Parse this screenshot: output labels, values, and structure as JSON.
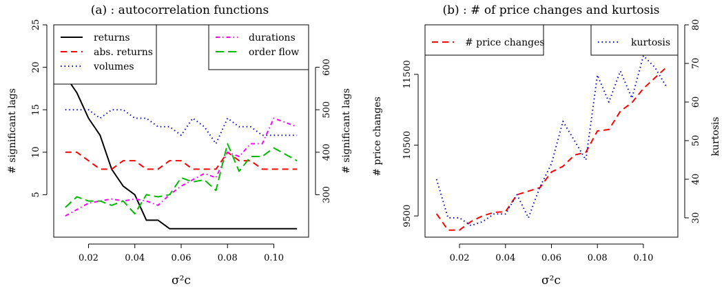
{
  "chart_data": [
    {
      "type": "line",
      "title": "(a) : autocorrelation functions",
      "xlabel": "σ²c",
      "ylabel": "# significant lags",
      "ylabel_right": "# significant lags",
      "xlim": [
        0.005,
        0.115
      ],
      "ylim": [
        0,
        25
      ],
      "ylim_right": [
        200,
        700
      ],
      "x_ticks": [
        0.02,
        0.04,
        0.06,
        0.08,
        0.1
      ],
      "x_tick_labels": [
        "0.02",
        "0.04",
        "0.06",
        "0.08",
        "0.10"
      ],
      "y_ticks": [
        5,
        10,
        15,
        20,
        25
      ],
      "y_tick_labels": [
        "5",
        "10",
        "15",
        "20",
        "25"
      ],
      "y_ticks_right": [
        300,
        400,
        500,
        600
      ],
      "y_tick_labels_right": [
        "300",
        "400",
        "500",
        "600"
      ],
      "x": [
        0.01,
        0.015,
        0.02,
        0.025,
        0.03,
        0.035,
        0.04,
        0.045,
        0.05,
        0.055,
        0.06,
        0.065,
        0.07,
        0.075,
        0.08,
        0.085,
        0.09,
        0.095,
        0.1,
        0.105,
        0.11
      ],
      "legend_left": {
        "placement": "top-left",
        "entries": [
          "returns",
          "abs. returns",
          "volumes"
        ]
      },
      "legend_right": {
        "placement": "top-right",
        "entries": [
          "durations",
          "order flow"
        ]
      },
      "series": [
        {
          "name": "returns",
          "axis": "left",
          "color": "#000000",
          "dash": "",
          "width": 2,
          "values": [
            19,
            17,
            14,
            12,
            8,
            6,
            5,
            2,
            2,
            1,
            1,
            1,
            1,
            1,
            1,
            1,
            1,
            1,
            1,
            1,
            1
          ]
        },
        {
          "name": "abs. returns",
          "axis": "left",
          "color": "#ff0000",
          "dash": "9,6",
          "width": 2,
          "values": [
            10,
            10,
            9,
            8,
            8,
            9,
            9,
            8,
            8,
            9,
            9,
            8,
            8,
            8,
            10,
            9,
            9,
            8,
            8,
            8,
            8
          ]
        },
        {
          "name": "volumes",
          "axis": "left",
          "color": "#0000cc",
          "dash": "1.5,4",
          "width": 2,
          "values": [
            15,
            15,
            15,
            14,
            15,
            15,
            14,
            14,
            13,
            13,
            12,
            14,
            13,
            11,
            14,
            13,
            13,
            12,
            12,
            12,
            12
          ]
        },
        {
          "name": "durations",
          "axis": "right",
          "color": "#ff00ff",
          "dash": "6,4,1.5,4",
          "width": 2,
          "values": [
            250,
            265,
            280,
            285,
            290,
            285,
            290,
            285,
            275,
            300,
            320,
            335,
            350,
            340,
            400,
            390,
            420,
            420,
            480,
            470,
            460
          ]
        },
        {
          "name": "order flow",
          "axis": "right",
          "color": "#00bb00",
          "dash": "12,6",
          "width": 2,
          "values": [
            270,
            295,
            285,
            285,
            275,
            285,
            255,
            300,
            295,
            300,
            340,
            330,
            335,
            310,
            420,
            355,
            390,
            390,
            410,
            395,
            380
          ]
        }
      ]
    },
    {
      "type": "line",
      "title": "(b) : # of price changes and kurtosis",
      "xlabel": "σ²c",
      "ylabel": "# price changes",
      "ylabel_right": "kurtosis",
      "xlim": [
        0.005,
        0.115
      ],
      "ylim": [
        9200,
        12200
      ],
      "ylim_right": [
        25,
        80
      ],
      "x_ticks": [
        0.02,
        0.04,
        0.06,
        0.08,
        0.1
      ],
      "x_tick_labels": [
        "0.02",
        "0.04",
        "0.06",
        "0.08",
        "0.10"
      ],
      "y_ticks": [
        9500,
        10500,
        11500
      ],
      "y_tick_labels": [
        "9500",
        "10500",
        "11500"
      ],
      "y_ticks_right": [
        30,
        40,
        50,
        60,
        70,
        80
      ],
      "y_tick_labels_right": [
        "30",
        "40",
        "50",
        "60",
        "70",
        "80"
      ],
      "x": [
        0.01,
        0.015,
        0.02,
        0.025,
        0.03,
        0.035,
        0.04,
        0.045,
        0.05,
        0.055,
        0.06,
        0.065,
        0.07,
        0.075,
        0.08,
        0.085,
        0.09,
        0.095,
        0.1,
        0.105,
        0.11
      ],
      "legend_left": {
        "placement": "top-left",
        "entries": [
          "# price changes"
        ]
      },
      "legend_right": {
        "placement": "top-right",
        "entries": [
          "kurtosis"
        ]
      },
      "series": [
        {
          "name": "# price changes",
          "axis": "left",
          "color": "#ff0000",
          "dash": "9,6",
          "width": 2,
          "values": [
            9530,
            9300,
            9300,
            9420,
            9500,
            9550,
            9560,
            9800,
            9850,
            9900,
            10120,
            10200,
            10360,
            10400,
            10700,
            10720,
            10980,
            11100,
            11300,
            11450,
            11600
          ]
        },
        {
          "name": "kurtosis",
          "axis": "right",
          "color": "#0000cc",
          "dash": "1.5,4",
          "width": 2,
          "values": [
            40,
            30,
            30,
            28,
            29,
            31,
            31,
            36,
            30,
            38,
            44,
            55,
            50,
            45,
            67,
            60,
            68,
            61,
            72,
            69,
            64
          ]
        }
      ]
    }
  ]
}
